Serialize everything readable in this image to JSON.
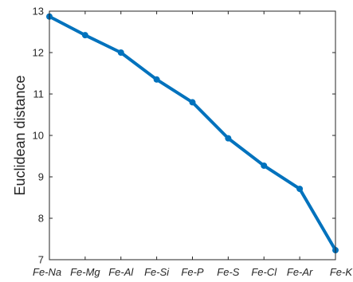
{
  "chart_data": {
    "type": "line",
    "title": "",
    "xlabel": "",
    "ylabel": "Euclidean distance",
    "categories": [
      "Fe-Na",
      "Fe-Mg",
      "Fe-Al",
      "Fe-Si",
      "Fe-P",
      "Fe-S",
      "Fe-Cl",
      "Fe-Ar",
      "Fe-K"
    ],
    "series": [
      {
        "values": [
          12.87,
          12.42,
          12.0,
          11.35,
          10.8,
          9.93,
          9.27,
          8.71,
          7.23
        ]
      }
    ],
    "ylim": [
      7,
      13
    ],
    "yticks": [
      7,
      8,
      9,
      10,
      11,
      12,
      13
    ],
    "grid": false,
    "legend": "none",
    "colors": {
      "line": "#0072BD",
      "axis": "#262626"
    }
  }
}
